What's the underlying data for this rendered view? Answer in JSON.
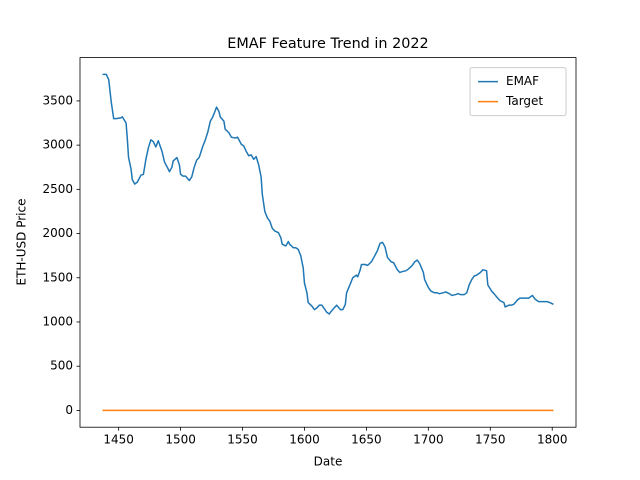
{
  "chart_data": {
    "type": "line",
    "title": "EMAF Feature Trend in 2022",
    "x_label": "Date",
    "y_label": "ETH-USD Price",
    "legend": "upper right",
    "xlim": [
      1418.8,
      1819.2
    ],
    "xticks": [
      1450,
      1500,
      1550,
      1600,
      1650,
      1700,
      1750,
      1800
    ],
    "ylim": [
      -190,
      3990
    ],
    "yticks": [
      0,
      500,
      1000,
      1500,
      2000,
      2500,
      3000,
      3500
    ],
    "series": [
      {
        "name": "EMAF",
        "color": "#1f77b4",
        "x": [
          1437,
          1440,
          1442,
          1444,
          1446,
          1448,
          1452,
          1453,
          1456,
          1457,
          1458,
          1460,
          1461,
          1463,
          1465,
          1468,
          1470,
          1472,
          1474,
          1476,
          1478,
          1480,
          1482,
          1485,
          1487,
          1490,
          1491,
          1493,
          1494,
          1497,
          1499,
          1500,
          1502,
          1504,
          1507,
          1509,
          1511,
          1513,
          1515,
          1518,
          1520,
          1522,
          1524,
          1526,
          1528,
          1529,
          1531,
          1532,
          1535,
          1536,
          1539,
          1541,
          1544,
          1546,
          1549,
          1551,
          1553,
          1555,
          1557,
          1559,
          1561,
          1563,
          1565,
          1566,
          1568,
          1570,
          1572,
          1574,
          1576,
          1579,
          1581,
          1582,
          1585,
          1587,
          1588,
          1591,
          1593,
          1595,
          1597,
          1599,
          1600,
          1602,
          1603,
          1606,
          1608,
          1610,
          1612,
          1614,
          1616,
          1618,
          1620,
          1621,
          1624,
          1626,
          1629,
          1631,
          1633,
          1634,
          1637,
          1639,
          1642,
          1643,
          1645,
          1646,
          1649,
          1651,
          1654,
          1656,
          1659,
          1661,
          1663,
          1665,
          1667,
          1670,
          1672,
          1675,
          1677,
          1679,
          1682,
          1684,
          1687,
          1689,
          1691,
          1693,
          1696,
          1697,
          1700,
          1702,
          1705,
          1707,
          1709,
          1712,
          1714,
          1717,
          1719,
          1722,
          1724,
          1726,
          1729,
          1731,
          1733,
          1735,
          1737,
          1739,
          1742,
          1744,
          1747,
          1748,
          1751,
          1753,
          1756,
          1758,
          1761,
          1762,
          1765,
          1767,
          1769,
          1772,
          1774,
          1777,
          1779,
          1781,
          1784,
          1786,
          1789,
          1791,
          1793,
          1796,
          1798,
          1801
        ],
        "values": [
          3800,
          3800,
          3740,
          3490,
          3300,
          3300,
          3310,
          3320,
          3250,
          3070,
          2860,
          2730,
          2610,
          2560,
          2580,
          2660,
          2670,
          2840,
          2970,
          3060,
          3040,
          2980,
          3050,
          2930,
          2810,
          2730,
          2700,
          2750,
          2820,
          2860,
          2780,
          2670,
          2650,
          2650,
          2600,
          2640,
          2750,
          2830,
          2860,
          2990,
          3060,
          3150,
          3270,
          3320,
          3390,
          3430,
          3380,
          3320,
          3270,
          3180,
          3140,
          3090,
          3080,
          3090,
          3010,
          2990,
          2930,
          2880,
          2890,
          2840,
          2870,
          2780,
          2640,
          2440,
          2250,
          2180,
          2140,
          2060,
          2030,
          2010,
          1950,
          1880,
          1860,
          1910,
          1880,
          1840,
          1840,
          1820,
          1750,
          1610,
          1440,
          1330,
          1220,
          1180,
          1140,
          1160,
          1190,
          1190,
          1150,
          1110,
          1090,
          1110,
          1160,
          1190,
          1140,
          1140,
          1200,
          1330,
          1430,
          1500,
          1530,
          1510,
          1590,
          1650,
          1650,
          1640,
          1680,
          1730,
          1810,
          1890,
          1900,
          1850,
          1730,
          1680,
          1670,
          1590,
          1560,
          1570,
          1580,
          1600,
          1640,
          1680,
          1700,
          1660,
          1560,
          1480,
          1390,
          1350,
          1330,
          1330,
          1320,
          1330,
          1340,
          1320,
          1300,
          1310,
          1320,
          1310,
          1310,
          1330,
          1420,
          1480,
          1520,
          1530,
          1560,
          1590,
          1580,
          1420,
          1350,
          1320,
          1270,
          1240,
          1220,
          1170,
          1190,
          1190,
          1200,
          1250,
          1270,
          1270,
          1270,
          1270,
          1300,
          1260,
          1230,
          1230,
          1230,
          1230,
          1220,
          1200
        ]
      },
      {
        "name": "Target",
        "color": "#ff7f0e",
        "x": [
          1437,
          1801
        ],
        "values": [
          0,
          0
        ]
      }
    ]
  }
}
